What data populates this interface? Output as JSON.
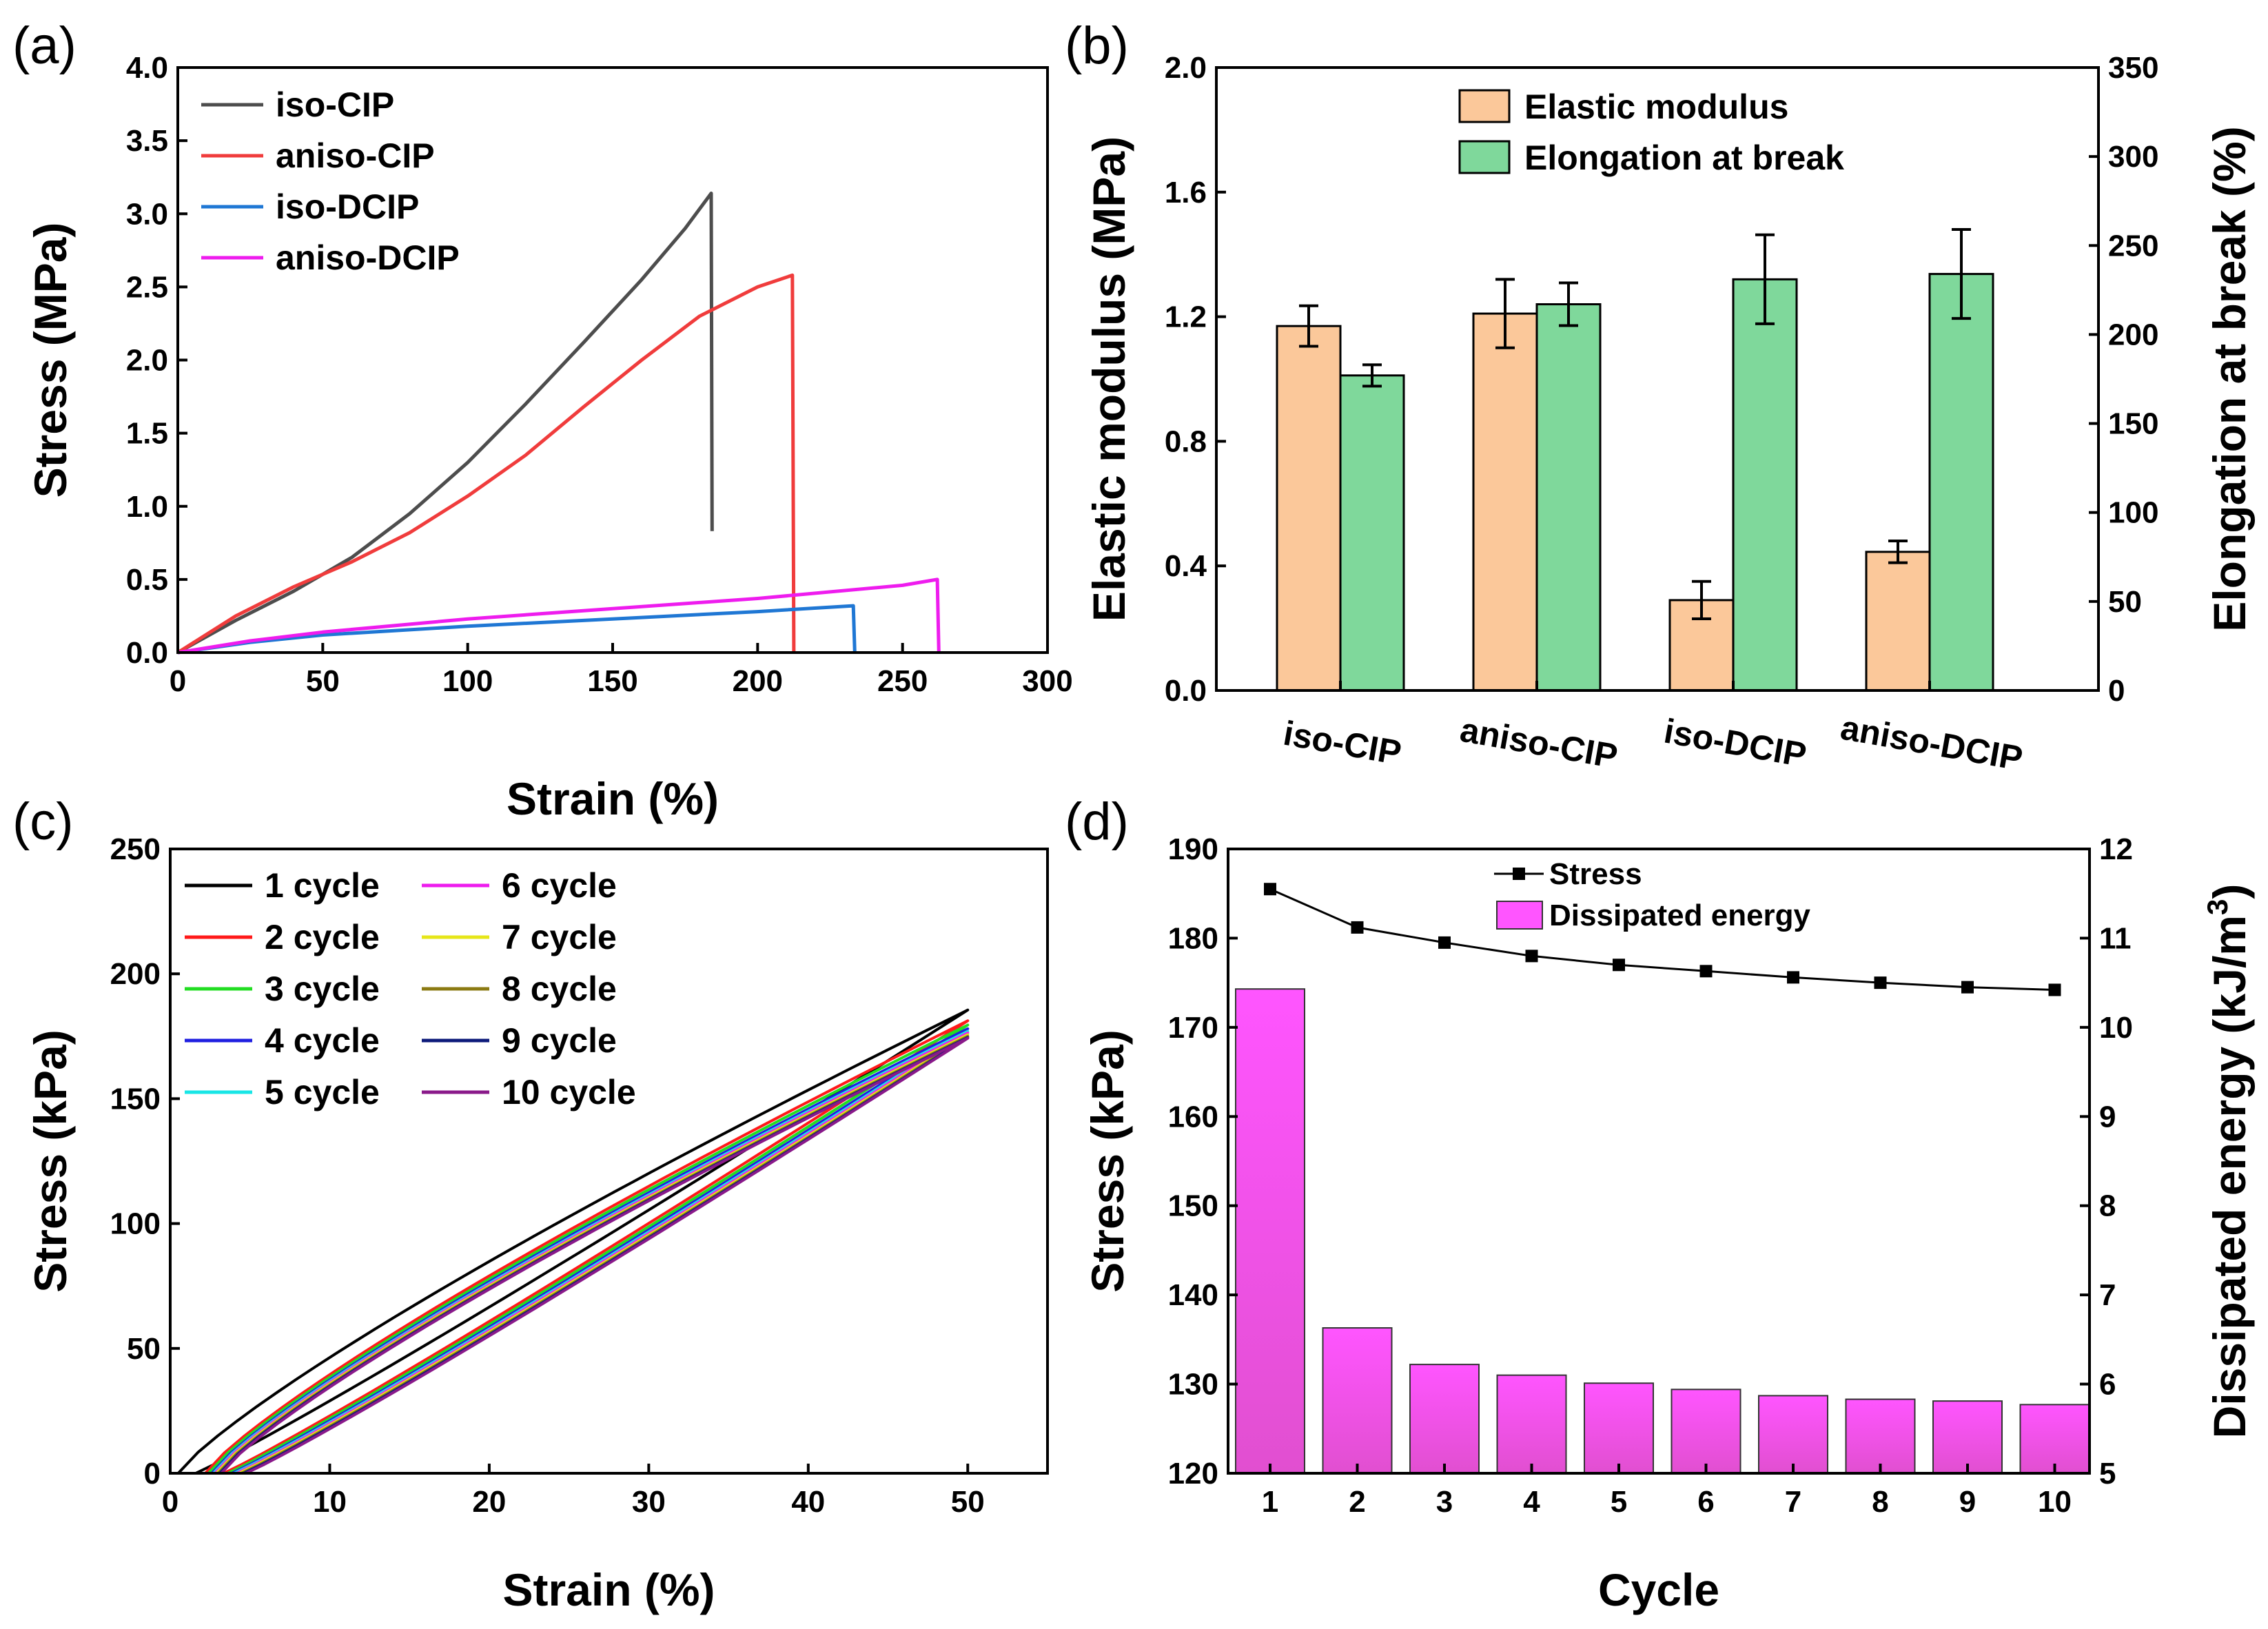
{
  "chart_data": [
    {
      "panel": "(a)",
      "type": "line",
      "xlabel": "Strain (%)",
      "ylabel": "Stress (MPa)",
      "xlim": [
        0,
        300
      ],
      "ylim": [
        0,
        4.0
      ],
      "xticks": [
        "0",
        "50",
        "100",
        "150",
        "200",
        "250",
        "300"
      ],
      "yticks": [
        "0.0",
        "0.5",
        "1.0",
        "1.5",
        "2.0",
        "2.5",
        "3.0",
        "3.5",
        "4.0"
      ],
      "legend_position": "top-left",
      "series": [
        {
          "name": "iso-CIP",
          "color": "#4d4d4d",
          "x": [
            0,
            20,
            40,
            60,
            80,
            100,
            120,
            140,
            160,
            175,
            184,
            184.3
          ],
          "y": [
            0,
            0.22,
            0.42,
            0.65,
            0.95,
            1.3,
            1.7,
            2.12,
            2.55,
            2.9,
            3.14,
            0.83
          ]
        },
        {
          "name": "aniso-CIP",
          "color": "#f03c3c",
          "x": [
            0,
            20,
            40,
            60,
            80,
            100,
            120,
            140,
            160,
            180,
            200,
            212,
            212.5
          ],
          "y": [
            0,
            0.25,
            0.45,
            0.62,
            0.82,
            1.07,
            1.35,
            1.68,
            2.0,
            2.3,
            2.5,
            2.58,
            0.0
          ]
        },
        {
          "name": "iso-DCIP",
          "color": "#1f77d4",
          "x": [
            0,
            25,
            50,
            100,
            150,
            200,
            233,
            233.5
          ],
          "y": [
            0,
            0.07,
            0.12,
            0.18,
            0.23,
            0.28,
            0.32,
            0.0
          ]
        },
        {
          "name": "aniso-DCIP",
          "color": "#ee1cee",
          "x": [
            0,
            25,
            50,
            100,
            150,
            200,
            250,
            262,
            262.5
          ],
          "y": [
            0,
            0.08,
            0.14,
            0.23,
            0.3,
            0.37,
            0.46,
            0.5,
            0.0
          ]
        }
      ]
    },
    {
      "panel": "(b)",
      "type": "bar",
      "categories": [
        "iso-CIP",
        "aniso-CIP",
        "iso-DCIP",
        "aniso-DCIP"
      ],
      "ylabel": "Elastic modulus (MPa)",
      "y2label": "Elongation at break (%)",
      "ylim": [
        0,
        2.0
      ],
      "y2lim": [
        0,
        350
      ],
      "yticks": [
        "0.0",
        "0.4",
        "0.8",
        "1.2",
        "1.6",
        "2.0"
      ],
      "y2ticks": [
        "0",
        "50",
        "100",
        "150",
        "200",
        "250",
        "300",
        "350"
      ],
      "legend_position": "top-center",
      "series": [
        {
          "name": "Elastic modulus",
          "axis": "left",
          "color": "#fbc89a",
          "values": [
            1.17,
            1.21,
            0.29,
            0.445
          ],
          "errors": [
            0.065,
            0.11,
            0.06,
            0.035
          ]
        },
        {
          "name": "Elongation at break",
          "axis": "right",
          "color": "#7fd89b",
          "values": [
            177,
            217,
            231,
            234
          ],
          "errors": [
            6,
            12,
            25,
            25
          ]
        }
      ]
    },
    {
      "panel": "(c)",
      "type": "line",
      "xlabel": "Strain (%)",
      "ylabel": "Stress (kPa)",
      "xlim": [
        0,
        55
      ],
      "ylim": [
        0,
        250
      ],
      "xticks": [
        "0",
        "10",
        "20",
        "30",
        "40",
        "50"
      ],
      "yticks": [
        "0",
        "50",
        "100",
        "150",
        "200",
        "250"
      ],
      "legend_position": "top-left",
      "series": [
        {
          "name": "1 cycle",
          "color": "#000000",
          "start_strain": 0.5,
          "peak_stress": 185.5
        },
        {
          "name": "2 cycle",
          "color": "#ff1a1a",
          "start_strain": 2.2,
          "peak_stress": 181.2
        },
        {
          "name": "3 cycle",
          "color": "#22dd22",
          "start_strain": 2.4,
          "peak_stress": 179.5
        },
        {
          "name": "4 cycle",
          "color": "#1f1fe0",
          "start_strain": 2.6,
          "peak_stress": 178.0
        },
        {
          "name": "5 cycle",
          "color": "#19e6e6",
          "start_strain": 2.7,
          "peak_stress": 177.0
        },
        {
          "name": "6 cycle",
          "color": "#ee1cee",
          "start_strain": 2.8,
          "peak_stress": 176.3
        },
        {
          "name": "7 cycle",
          "color": "#e6e619",
          "start_strain": 2.9,
          "peak_stress": 175.6
        },
        {
          "name": "8 cycle",
          "color": "#8b7a12",
          "start_strain": 3.0,
          "peak_stress": 175.0
        },
        {
          "name": "9 cycle",
          "color": "#0d1a7a",
          "start_strain": 3.1,
          "peak_stress": 174.5
        },
        {
          "name": "10 cycle",
          "color": "#8a1a8a",
          "start_strain": 3.2,
          "peak_stress": 174.2
        }
      ]
    },
    {
      "panel": "(d)",
      "type": "bar",
      "categories": [
        "1",
        "2",
        "3",
        "4",
        "5",
        "6",
        "7",
        "8",
        "9",
        "10"
      ],
      "xlabel": "Cycle",
      "ylabel": "Stress (kPa)",
      "y2label_main": "Dissipated energy (kJ/m",
      "y2label_sup": "3",
      "y2label_end": ")",
      "ylim": [
        120,
        190
      ],
      "y2lim": [
        5,
        12
      ],
      "yticks": [
        "120",
        "130",
        "140",
        "150",
        "160",
        "170",
        "180",
        "190"
      ],
      "y2ticks": [
        "5",
        "6",
        "7",
        "8",
        "9",
        "10",
        "11",
        "12"
      ],
      "legend_position": "top-center",
      "series": [
        {
          "name": "Stress",
          "type": "line",
          "axis": "left",
          "color": "#000000",
          "values": [
            185.5,
            181.2,
            179.5,
            178.0,
            177.0,
            176.3,
            175.6,
            175.0,
            174.5,
            174.2
          ]
        },
        {
          "name": "Dissipated energy",
          "type": "bar",
          "axis": "right",
          "color": "#ff55ff",
          "values": [
            10.43,
            6.63,
            6.22,
            6.1,
            6.01,
            5.94,
            5.87,
            5.83,
            5.81,
            5.77
          ]
        }
      ]
    }
  ]
}
